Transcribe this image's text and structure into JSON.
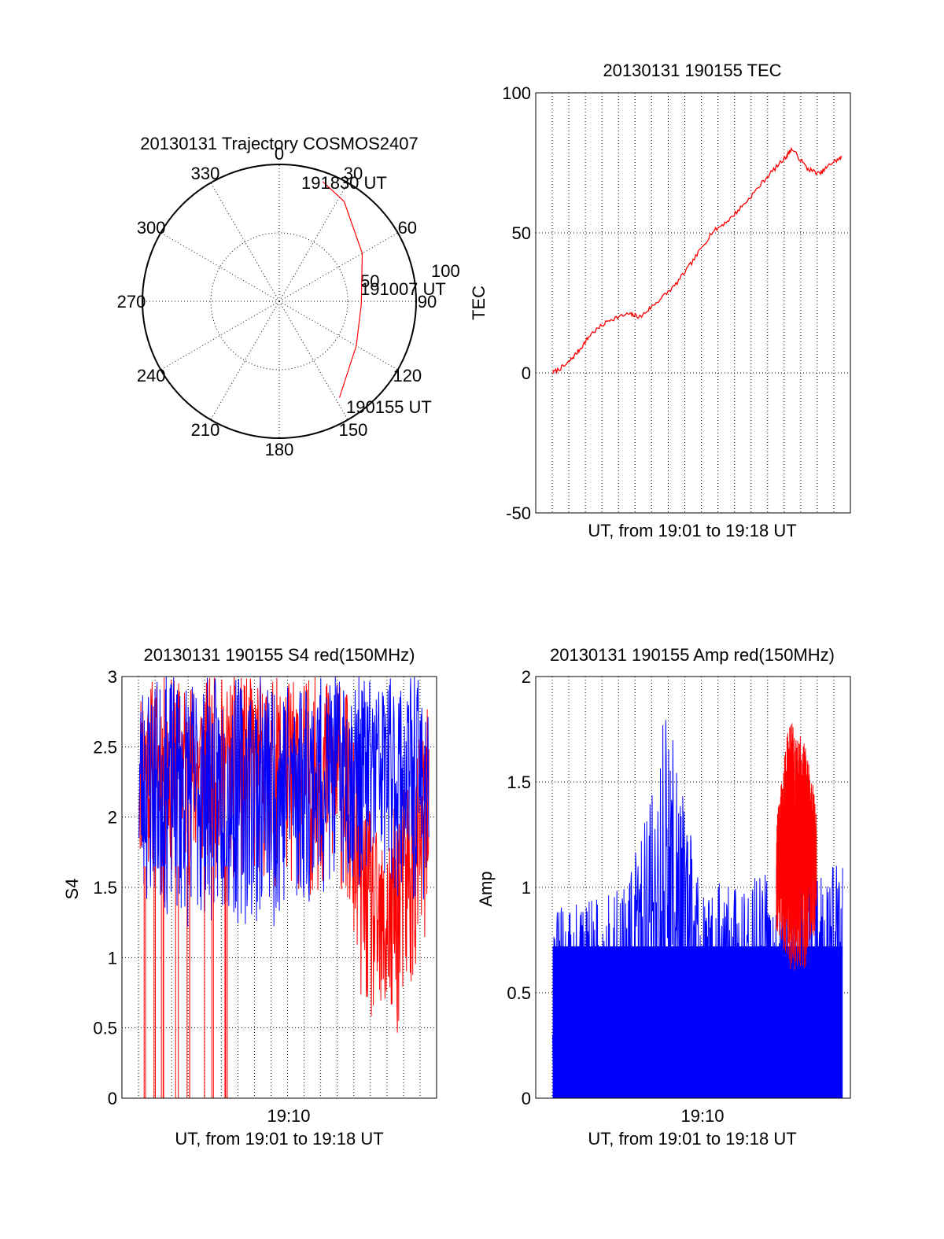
{
  "colors": {
    "red": "#ff0000",
    "blue": "#0000ff",
    "axis": "#000000"
  },
  "chart_data": [
    {
      "type": "polar",
      "title": "20130131 Trajectory COSMOS2407",
      "azimuth_labels": [
        "0",
        "30",
        "60",
        "90",
        "120",
        "150",
        "180",
        "210",
        "240",
        "270",
        "300",
        "330"
      ],
      "radius_labels": [
        "50",
        "100"
      ],
      "trajectory_start_label": "190155 UT",
      "trajectory_mid_label": "191007 UT",
      "trajectory_end_label": "191830 UT",
      "trajectory": [
        {
          "azimuth": 148,
          "zenith": 83
        },
        {
          "azimuth": 120,
          "zenith": 65
        },
        {
          "azimuth": 92,
          "zenith": 60
        },
        {
          "azimuth": 60,
          "zenith": 70
        },
        {
          "azimuth": 33,
          "zenith": 87
        },
        {
          "azimuth": 20,
          "zenith": 93
        }
      ],
      "series_color": "#ff0000"
    },
    {
      "type": "line",
      "title": "20130131 190155 TEC",
      "xlabel": "UT, from 19:01 to 19:18 UT",
      "ylabel": "TEC",
      "xlim": [
        "19:01",
        "19:18"
      ],
      "ylim": [
        -50,
        100
      ],
      "yticks": [
        "-50",
        "0",
        "50",
        "100"
      ],
      "grid": true,
      "series": [
        {
          "color": "#ff0000",
          "points": [
            [
              "19:01:55",
              0
            ],
            [
              "19:02:40",
              3
            ],
            [
              "19:03:20",
              8
            ],
            [
              "19:04:00",
              14
            ],
            [
              "19:05:00",
              19
            ],
            [
              "19:06:00",
              21
            ],
            [
              "19:06:40",
              20
            ],
            [
              "19:07:30",
              25
            ],
            [
              "19:08:30",
              31
            ],
            [
              "19:09:30",
              40
            ],
            [
              "19:10:30",
              50
            ],
            [
              "19:11:30",
              55
            ],
            [
              "19:12:30",
              62
            ],
            [
              "19:13:30",
              70
            ],
            [
              "19:14:30",
              77
            ],
            [
              "19:14:50",
              80
            ],
            [
              "19:15:40",
              73
            ],
            [
              "19:16:20",
              71
            ],
            [
              "19:17:00",
              75
            ],
            [
              "19:17:35",
              77
            ]
          ]
        }
      ]
    },
    {
      "type": "line",
      "title": "20130131 190155 S4 red(150MHz)",
      "xlabel": "UT, from 19:01 to 19:18 UT",
      "ylabel": "S4",
      "xlim": [
        "19:01",
        "19:18"
      ],
      "ylim": [
        0,
        3
      ],
      "yticks": [
        "0",
        "0.5",
        "1",
        "1.5",
        "2",
        "2.5",
        "3"
      ],
      "xticks": [
        "19:10"
      ],
      "grid": true,
      "series": [
        {
          "color": "#ff0000",
          "envelope": [
            [
              "19:01:55",
              1.6,
              3.0
            ],
            [
              "19:05:00",
              1.5,
              3.0
            ],
            [
              "19:09:00",
              1.5,
              3.0
            ],
            [
              "19:13:00",
              1.4,
              3.0
            ],
            [
              "19:14:00",
              0.6,
              2.2
            ],
            [
              "19:15:00",
              0.25,
              1.8
            ],
            [
              "19:16:00",
              0.4,
              2.2
            ],
            [
              "19:17:35",
              1.0,
              2.8
            ]
          ]
        },
        {
          "color": "#0000ff",
          "envelope": [
            [
              "19:01:55",
              1.3,
              3.0
            ],
            [
              "19:05:00",
              1.2,
              3.0
            ],
            [
              "19:09:00",
              1.2,
              3.0
            ],
            [
              "19:13:00",
              1.5,
              3.0
            ],
            [
              "19:15:00",
              1.5,
              3.0
            ],
            [
              "19:17:35",
              1.3,
              3.0
            ]
          ]
        }
      ]
    },
    {
      "type": "line",
      "title": "20130131 190155 Amp red(150MHz)",
      "xlabel": "UT, from 19:01 to 19:18 UT",
      "ylabel": "Amp",
      "xlim": [
        "19:01",
        "19:18"
      ],
      "ylim": [
        0,
        2
      ],
      "yticks": [
        "0",
        "0.5",
        "1",
        "1.5",
        "2"
      ],
      "xticks": [
        "19:10"
      ],
      "grid": true,
      "series": [
        {
          "color": "#0000ff",
          "envelope": [
            [
              "19:01:55",
              0.0,
              0.9
            ],
            [
              "19:06:00",
              0.0,
              1.0
            ],
            [
              "19:08:00",
              0.0,
              1.9
            ],
            [
              "19:10:00",
              0.0,
              1.0
            ],
            [
              "19:14:00",
              0.0,
              1.1
            ],
            [
              "19:17:35",
              0.0,
              1.2
            ]
          ]
        },
        {
          "color": "#ff0000",
          "envelope": [
            [
              "19:14:00",
              0.8,
              1.3
            ],
            [
              "19:14:40",
              0.6,
              1.8
            ],
            [
              "19:15:30",
              0.6,
              1.7
            ],
            [
              "19:16:10",
              0.8,
              1.4
            ]
          ]
        }
      ]
    }
  ]
}
